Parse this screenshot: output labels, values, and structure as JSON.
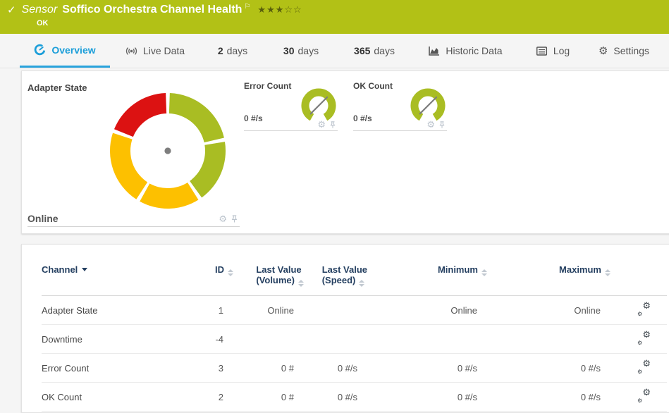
{
  "banner": {
    "kind_label": "Sensor",
    "title": "Soffico Orchestra Channel Health",
    "status": "OK",
    "stars_filled": "★★★",
    "stars_empty": "☆☆",
    "check_glyph": "✓",
    "flag_glyph": "⚐"
  },
  "tabs": {
    "overview": {
      "label": "Overview"
    },
    "live_data": {
      "label": "Live Data"
    },
    "days2": {
      "num": "2",
      "unit": "days"
    },
    "days30": {
      "num": "30",
      "unit": "days"
    },
    "days365": {
      "num": "365",
      "unit": "days"
    },
    "historic": {
      "label": "Historic Data"
    },
    "log": {
      "label": "Log"
    },
    "settings": {
      "label": "Settings",
      "gear_glyph": "⚙"
    }
  },
  "gauge_panel": {
    "main": {
      "title": "Adapter State",
      "value": "Online",
      "gear_glyph": "⚙"
    },
    "error": {
      "title": "Error Count",
      "value": "0 #/s",
      "gear_glyph": "⚙"
    },
    "ok": {
      "title": "OK Count",
      "value": "0 #/s",
      "gear_glyph": "⚙"
    }
  },
  "chart_data": [
    {
      "type": "gauge",
      "title": "Adapter State",
      "value": "Online",
      "needle_angle_deg": 109,
      "needle_color": "#7e7e7e",
      "segments": [
        {
          "from": 2,
          "to": 77,
          "color": "#a9bd23"
        },
        {
          "from": 81,
          "to": 144,
          "color": "#a9bd23"
        },
        {
          "from": 148,
          "to": 209,
          "color": "#fdc000"
        },
        {
          "from": 213,
          "to": 288,
          "color": "#fdc000"
        },
        {
          "from": 292,
          "to": 358,
          "color": "#dc1212"
        }
      ]
    },
    {
      "type": "gauge",
      "title": "Error Count",
      "value": "0 #/s",
      "needle_angle_deg": 45,
      "arc_color": "#a9bd23",
      "needle_color": "#7e7e7e",
      "arc_from": -150,
      "arc_to": 150
    },
    {
      "type": "gauge",
      "title": "OK Count",
      "value": "0 #/s",
      "needle_angle_deg": 45,
      "arc_color": "#a9bd23",
      "needle_color": "#7e7e7e",
      "arc_from": -150,
      "arc_to": 150
    }
  ],
  "table": {
    "headers": {
      "channel": "Channel",
      "id": "ID",
      "last_value_volume_line1": "Last Value",
      "last_value_volume_line2": "(Volume)",
      "last_value_speed_line1": "Last Value",
      "last_value_speed_line2": "(Speed)",
      "minimum": "Minimum",
      "maximum": "Maximum"
    },
    "rows": [
      {
        "channel": "Adapter State",
        "id": "1",
        "last_volume": "Online",
        "last_speed": "",
        "min": "Online",
        "max": "Online"
      },
      {
        "channel": "Downtime",
        "id": "-4",
        "last_volume": "",
        "last_speed": "",
        "min": "",
        "max": ""
      },
      {
        "channel": "Error Count",
        "id": "3",
        "last_volume": "0 #",
        "last_speed": "0 #/s",
        "min": "0 #/s",
        "max": "0 #/s"
      },
      {
        "channel": "OK Count",
        "id": "2",
        "last_volume": "0 #",
        "last_speed": "0 #/s",
        "min": "0 #/s",
        "max": "0 #/s"
      }
    ],
    "gear_glyph": "⚙"
  },
  "colors": {
    "banner_green": "#b2c116",
    "accent_blue": "#1b9ed9",
    "gauge_green": "#a9bd23",
    "gauge_yellow": "#fdc000",
    "gauge_red": "#dc1212",
    "header_navy": "#243f60",
    "needle_gray": "#7e7e7e"
  }
}
